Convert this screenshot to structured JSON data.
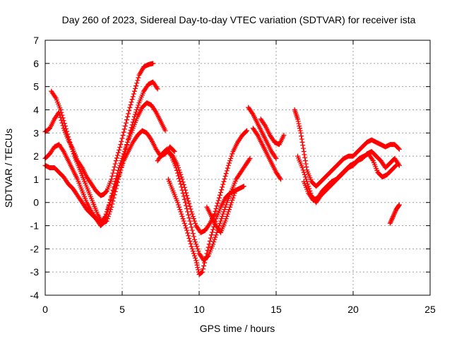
{
  "chart_data": {
    "type": "scatter",
    "title": "Day 260 of 2023, Sidereal Day-to-day VTEC variation (SDTVAR) for receiver ista",
    "xlabel": "GPS time / hours",
    "ylabel": "SDTVAR / TECUs",
    "xlim": [
      0,
      25
    ],
    "ylim": [
      -4,
      7
    ],
    "xticks": [
      "0",
      "5",
      "10",
      "15",
      "20",
      "25"
    ],
    "yticks": [
      "-4",
      "-3",
      "-2",
      "-1",
      "0",
      "1",
      "2",
      "3",
      "4",
      "5",
      "6",
      "7"
    ],
    "grid": true,
    "marker": "plus",
    "color": "#ff0000",
    "series": [
      {
        "x": [
          0.0,
          0.3,
          0.6,
          0.9,
          1.2,
          1.5,
          1.8,
          2.1,
          2.4,
          2.7,
          3.0,
          3.3,
          3.6,
          3.8,
          4.0,
          4.3,
          4.6,
          4.9,
          5.2,
          5.5,
          5.8,
          6.1,
          6.4,
          6.7,
          7.0
        ],
        "y": [
          3.05,
          3.2,
          3.6,
          3.9,
          3.2,
          2.7,
          2.3,
          1.8,
          1.5,
          1.1,
          0.8,
          0.5,
          0.3,
          0.35,
          0.5,
          1.0,
          1.8,
          2.5,
          3.3,
          4.1,
          4.8,
          5.5,
          5.85,
          5.95,
          6.0
        ]
      },
      {
        "x": [
          0.4,
          0.7,
          1.0,
          1.3,
          1.6,
          1.9,
          2.2,
          2.5,
          2.8,
          3.1,
          3.4,
          3.7,
          4.0,
          4.3,
          4.6,
          4.9,
          5.2,
          5.5,
          5.8,
          6.1,
          6.4,
          6.7,
          7.0,
          7.3
        ],
        "y": [
          4.8,
          4.5,
          4.0,
          3.3,
          2.6,
          2.0,
          1.5,
          1.0,
          0.5,
          0.0,
          -0.5,
          -0.9,
          -0.8,
          -0.2,
          0.6,
          1.4,
          2.2,
          3.0,
          3.7,
          4.3,
          4.8,
          5.1,
          5.2,
          4.9
        ]
      },
      {
        "x": [
          0.0,
          0.3,
          0.6,
          0.9,
          1.2,
          1.5,
          1.8,
          2.1,
          2.4,
          2.7,
          3.0,
          3.3,
          3.6,
          3.9,
          4.2,
          4.5,
          4.8,
          5.1,
          5.4,
          5.7,
          6.0,
          6.3,
          6.6,
          6.9,
          7.2,
          7.5,
          7.8
        ],
        "y": [
          1.9,
          2.1,
          2.4,
          2.5,
          2.2,
          1.8,
          1.4,
          1.0,
          0.5,
          0.0,
          -0.4,
          -0.7,
          -1.0,
          -0.8,
          0.0,
          0.8,
          1.5,
          2.1,
          2.7,
          3.2,
          3.7,
          4.1,
          4.3,
          4.2,
          3.9,
          3.5,
          3.1
        ]
      },
      {
        "x": [
          0.0,
          0.3,
          0.6,
          0.9,
          1.2,
          1.5,
          1.8,
          2.1,
          2.4,
          2.7,
          3.0,
          3.3,
          3.6,
          3.9,
          4.2,
          4.5,
          4.8,
          5.1,
          5.4,
          5.7,
          6.0,
          6.3,
          6.6,
          6.9,
          7.2,
          7.5,
          7.8,
          8.1,
          8.4
        ],
        "y": [
          1.6,
          1.5,
          1.5,
          1.3,
          1.1,
          0.8,
          0.6,
          0.3,
          0.0,
          -0.3,
          -0.5,
          -0.7,
          -0.9,
          -0.6,
          0.0,
          0.6,
          1.2,
          1.8,
          2.2,
          2.6,
          2.9,
          3.1,
          3.0,
          2.7,
          2.3,
          2.0,
          2.1,
          2.4,
          2.2
        ]
      },
      {
        "x": [
          7.3,
          7.6,
          7.9,
          8.2,
          8.5,
          8.8,
          9.1,
          9.4,
          9.7,
          10.0,
          10.3,
          10.6,
          10.9,
          11.2,
          11.5,
          11.8,
          12.1,
          12.4,
          12.7,
          13.0,
          13.3
        ],
        "y": [
          1.8,
          2.1,
          2.3,
          2.0,
          1.5,
          0.8,
          0.0,
          -0.8,
          -1.6,
          -2.2,
          -2.5,
          -2.3,
          -1.8,
          -1.2,
          -0.6,
          0.0,
          0.5,
          1.0,
          1.3,
          1.6,
          1.9
        ]
      },
      {
        "x": [
          8.0,
          8.3,
          8.6,
          8.9,
          9.2,
          9.5,
          9.8,
          10.0,
          10.2,
          10.5,
          10.8,
          11.1,
          11.4,
          11.7,
          12.0,
          12.3,
          12.6,
          12.9
        ],
        "y": [
          1.0,
          0.5,
          0.0,
          -0.6,
          -1.2,
          -1.9,
          -2.5,
          -3.1,
          -3.0,
          -2.2,
          -1.4,
          -0.7,
          -0.2,
          0.2,
          0.4,
          0.5,
          0.6,
          0.7
        ]
      },
      {
        "x": [
          8.0,
          8.3,
          8.6,
          8.9,
          9.2,
          9.5,
          9.8,
          10.1,
          10.4,
          10.7,
          11.0,
          11.3,
          11.6,
          11.9,
          12.2,
          12.5,
          12.8,
          13.1
        ],
        "y": [
          2.2,
          2.0,
          1.6,
          1.0,
          0.3,
          -0.4,
          -1.0,
          -1.3,
          -1.2,
          -0.9,
          -0.5,
          0.2,
          0.9,
          1.6,
          2.2,
          2.6,
          2.9,
          3.1
        ]
      },
      {
        "x": [
          10.5,
          10.8,
          11.1,
          11.4,
          11.7,
          12.0,
          12.3
        ],
        "y": [
          -0.2,
          -0.6,
          -1.0,
          -1.3,
          -0.8,
          -0.2,
          0.4
        ]
      },
      {
        "x": [
          13.2,
          13.5,
          13.8,
          14.1,
          14.4,
          14.7,
          15.0
        ],
        "y": [
          4.1,
          3.8,
          3.4,
          3.0,
          2.6,
          2.2,
          1.9
        ]
      },
      {
        "x": [
          13.5,
          13.8,
          14.1,
          14.4,
          14.7,
          15.0,
          15.3
        ],
        "y": [
          3.2,
          2.9,
          2.5,
          2.1,
          1.7,
          1.3,
          1.0
        ]
      },
      {
        "x": [
          14.0,
          14.3,
          14.6,
          14.9,
          15.2,
          15.5
        ],
        "y": [
          3.6,
          3.3,
          2.9,
          2.6,
          2.5,
          2.9
        ]
      },
      {
        "x": [
          16.2,
          16.4,
          16.6,
          16.8,
          17.0,
          17.3,
          17.6,
          17.9,
          18.2,
          18.5,
          18.8,
          19.1,
          19.4,
          19.7,
          20.0,
          20.3,
          20.6,
          20.9,
          21.2,
          21.5,
          21.8,
          22.1,
          22.4,
          22.7,
          23.0
        ],
        "y": [
          4.0,
          3.6,
          3.0,
          2.2,
          1.4,
          0.9,
          0.7,
          0.9,
          1.1,
          1.3,
          1.5,
          1.7,
          1.9,
          2.0,
          2.0,
          2.2,
          2.4,
          2.6,
          2.7,
          2.6,
          2.5,
          2.4,
          2.5,
          2.5,
          2.3
        ]
      },
      {
        "x": [
          16.4,
          16.7,
          17.0,
          17.3,
          17.6,
          17.9,
          18.2,
          18.5,
          18.8,
          19.1,
          19.4,
          19.7,
          20.0,
          20.3,
          20.6,
          20.9,
          21.2,
          21.5,
          21.8,
          22.1,
          22.4,
          22.7,
          23.0
        ],
        "y": [
          2.0,
          1.5,
          0.9,
          0.3,
          0.0,
          0.3,
          0.5,
          0.7,
          0.9,
          1.1,
          1.3,
          1.5,
          1.6,
          1.8,
          1.9,
          2.1,
          2.2,
          2.0,
          1.8,
          1.5,
          1.7,
          1.9,
          1.6
        ]
      },
      {
        "x": [
          16.8,
          17.1,
          17.4,
          17.7,
          18.0,
          18.3,
          18.6,
          18.9,
          19.2,
          19.5,
          19.8,
          20.1,
          20.4,
          20.7,
          21.0,
          21.3,
          21.6,
          21.9,
          22.2,
          22.5,
          22.8
        ],
        "y": [
          0.9,
          0.4,
          0.1,
          0.2,
          0.5,
          0.7,
          0.9,
          1.0,
          1.2,
          1.4,
          1.6,
          1.7,
          1.9,
          2.0,
          2.1,
          1.8,
          1.3,
          1.1,
          1.2,
          1.4,
          1.6
        ]
      },
      {
        "x": [
          22.4,
          22.6,
          22.8,
          23.0
        ],
        "y": [
          -0.9,
          -0.6,
          -0.3,
          -0.1
        ]
      }
    ]
  }
}
